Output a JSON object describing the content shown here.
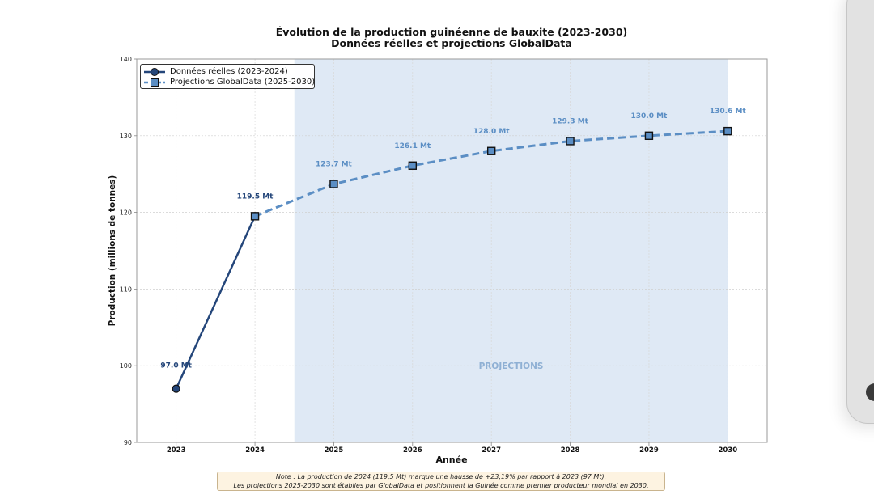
{
  "chart_data": {
    "type": "line",
    "title": "Évolution de la production guinéenne de bauxite (2023-2030)",
    "subtitle": "Données réelles et projections GlobalData",
    "xlabel": "Année",
    "ylabel": "Production (millions de tonnes)",
    "ylim": [
      90,
      140
    ],
    "xlim": [
      2022.5,
      2030.5
    ],
    "yticks": [
      90,
      100,
      110,
      120,
      130,
      140
    ],
    "xticks": [
      2023,
      2024,
      2025,
      2026,
      2027,
      2028,
      2029,
      2030
    ],
    "grid": true,
    "legend_position": "top-left",
    "projection_region": {
      "from": 2024.5,
      "to": 2030,
      "label": "PROJECTIONS",
      "color": "#dfe9f5"
    },
    "series": [
      {
        "name": "Données réelles (2023-2024)",
        "style": "solid",
        "marker": "circle",
        "color": "#24467a",
        "x": [
          2023,
          2024
        ],
        "values": [
          97.0,
          119.5
        ],
        "labels": [
          "97.0 Mt",
          "119.5 Mt"
        ]
      },
      {
        "name": "Projections GlobalData (2025-2030)",
        "style": "dashed",
        "marker": "square",
        "color": "#5b8ec4",
        "x": [
          2024,
          2025,
          2026,
          2027,
          2028,
          2029,
          2030
        ],
        "values": [
          119.5,
          123.7,
          126.1,
          128.0,
          129.3,
          130.0,
          130.6
        ],
        "labels": [
          null,
          "123.7 Mt",
          "126.1 Mt",
          "128.0 Mt",
          "129.3 Mt",
          "130.0 Mt",
          "130.6 Mt"
        ]
      }
    ]
  },
  "note": {
    "line1": "Note : La production de 2024 (119,5 Mt) marque une hausse de +23,19% par rapport à 2023 (97 Mt).",
    "line2": "Les projections 2025-2030 sont établies par GlobalData et positionnent la Guinée comme premier producteur mondial en 2030."
  }
}
